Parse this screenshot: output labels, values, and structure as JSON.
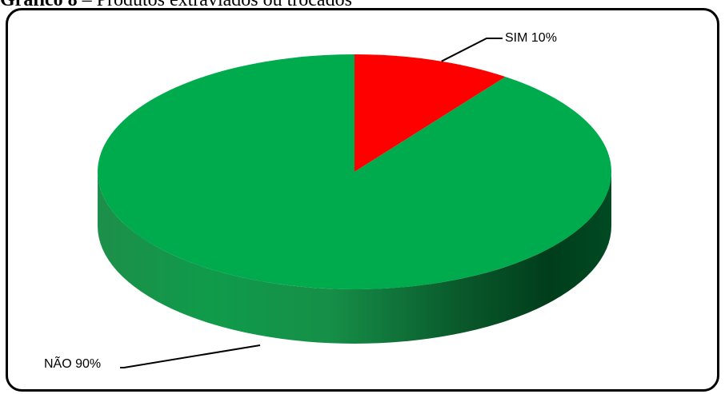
{
  "caption": {
    "prefix": "Gráfico 8",
    "text": " – Produtos extraviados ou trocados"
  },
  "colors": {
    "sim": "#ff0000",
    "nao": "#00ab4e",
    "nao_side_light": "#14a04a",
    "nao_side_dark": "#004a22",
    "frame": "#000000"
  },
  "chart_data": {
    "type": "pie",
    "title": "Gráfico 8 – Produtos extraviados ou trocados",
    "style": "3d",
    "slices": [
      {
        "label": "SIM",
        "value": 10,
        "display": "SIM 10%"
      },
      {
        "label": "NÃO",
        "value": 90,
        "display": "NÃO 90%"
      }
    ]
  }
}
